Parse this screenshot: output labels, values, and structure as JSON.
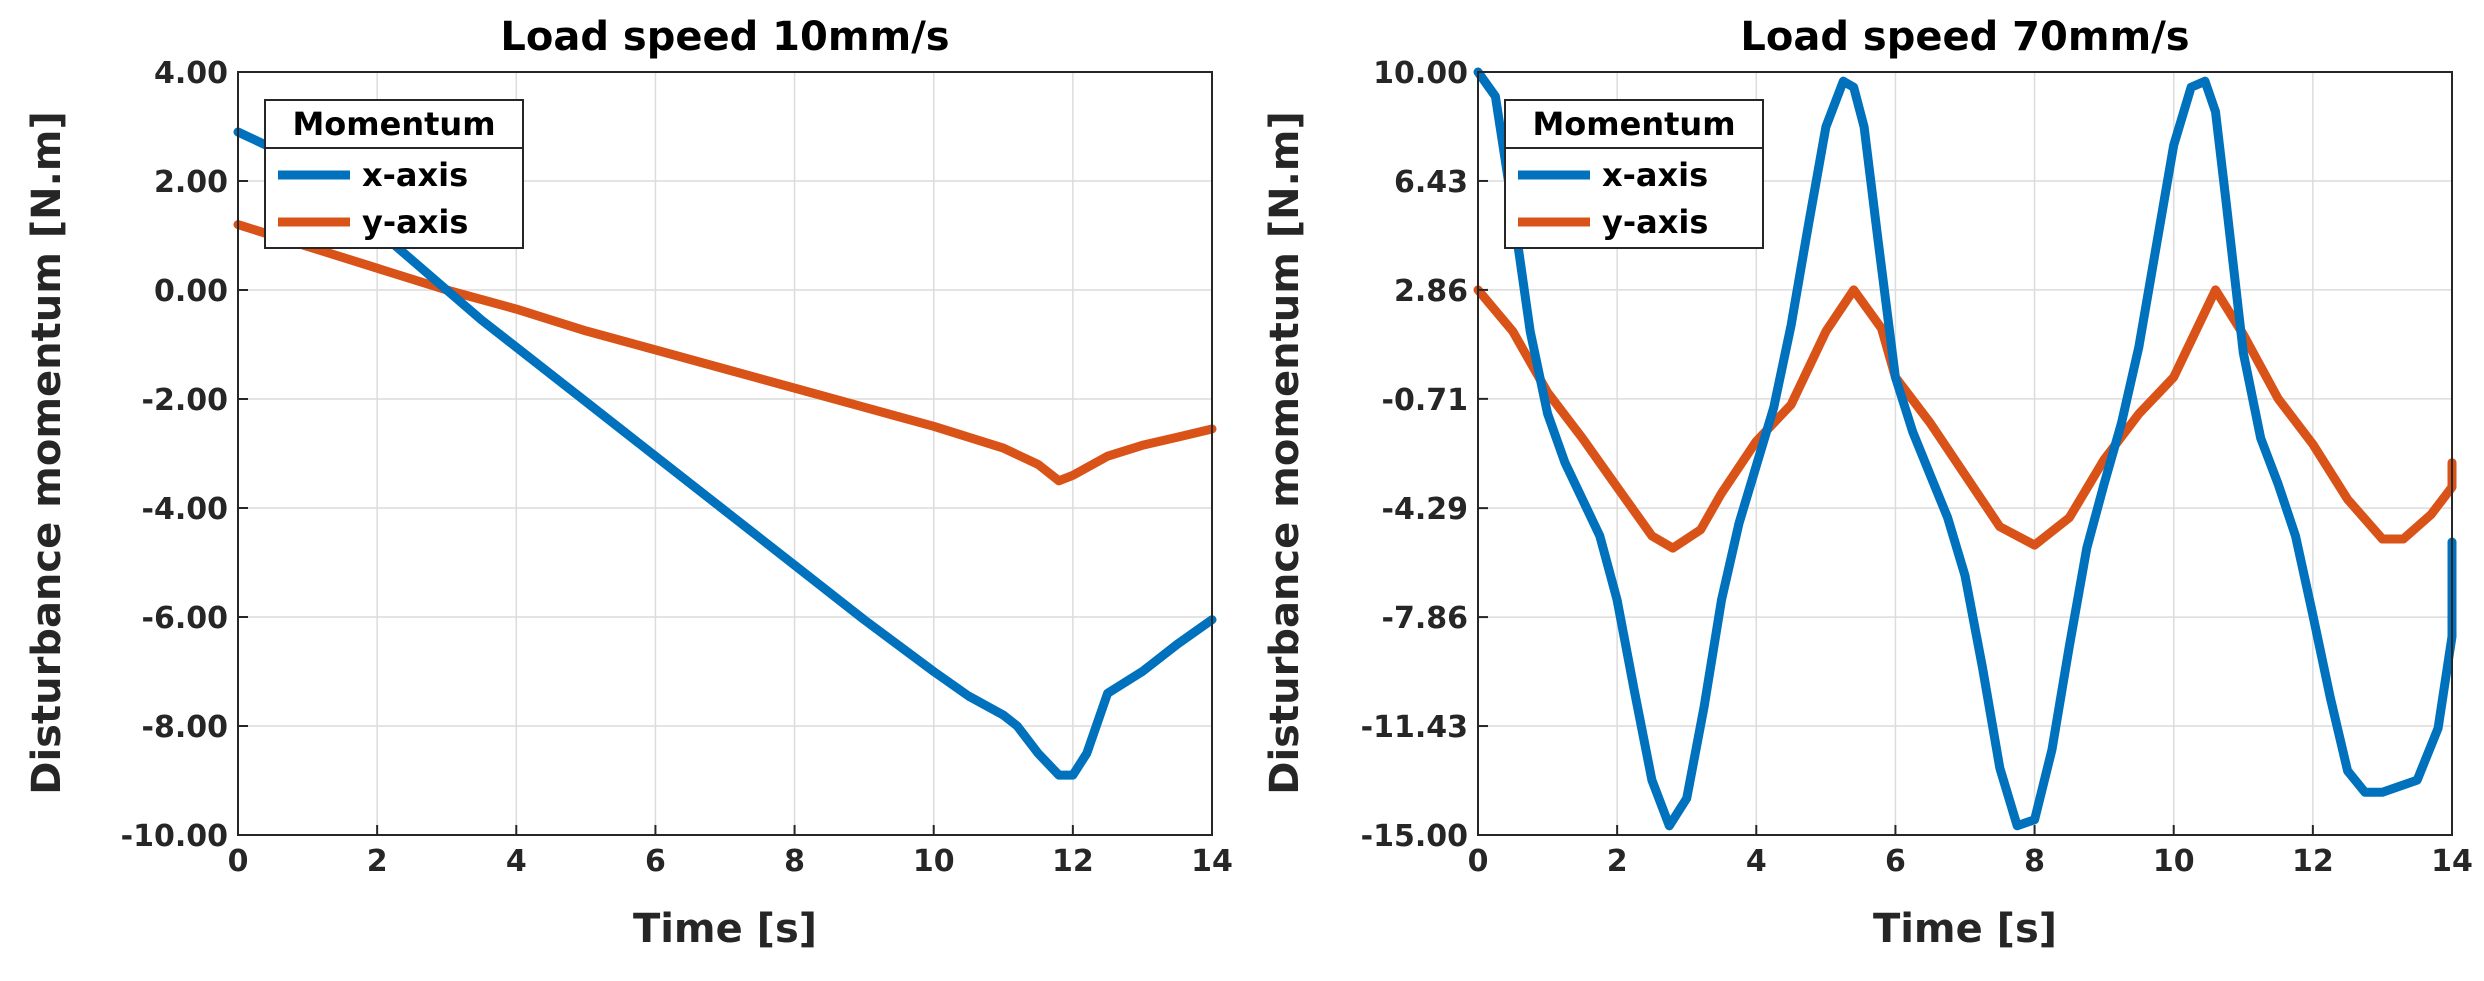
{
  "chart_data": [
    {
      "type": "line",
      "title": "Load speed 10mm/s",
      "xlabel": "Time [s]",
      "ylabel": "Disturbance momentum [N.m]",
      "xlim": [
        0,
        14
      ],
      "ylim": [
        -10,
        4
      ],
      "xticks": [
        0,
        2,
        4,
        6,
        8,
        10,
        12,
        14
      ],
      "xtick_labels": [
        "0",
        "2",
        "4",
        "6",
        "8",
        "10",
        "12",
        "14"
      ],
      "yticks": [
        4,
        2,
        0,
        -2,
        -4,
        -6,
        -8,
        -10
      ],
      "ytick_labels": [
        "4.00",
        "2.00",
        "0.00",
        "-2.00",
        "-4.00",
        "-6.00",
        "-8.00",
        "-10.00"
      ],
      "grid": true,
      "legend": {
        "title": "Momentum",
        "position": "top-left"
      },
      "series": [
        {
          "name": "x-axis",
          "color": "#0072BD",
          "x": [
            0,
            0.5,
            1,
            1.5,
            2,
            2.5,
            3,
            3.5,
            4,
            5,
            6,
            7,
            8,
            9,
            10,
            10.5,
            11,
            11.2,
            11.5,
            11.8,
            12,
            12.2,
            12.5,
            13,
            13.5,
            14
          ],
          "y": [
            2.9,
            2.6,
            2.2,
            1.65,
            1.1,
            0.55,
            0.0,
            -0.55,
            -1.05,
            -2.05,
            -3.05,
            -4.05,
            -5.05,
            -6.05,
            -7.0,
            -7.45,
            -7.8,
            -8.0,
            -8.5,
            -8.9,
            -8.9,
            -8.5,
            -7.4,
            -7.0,
            -6.5,
            -6.05
          ]
        },
        {
          "name": "y-axis",
          "color": "#D95319",
          "x": [
            0,
            1,
            2,
            3,
            4,
            5,
            6,
            7,
            8,
            9,
            10,
            11,
            11.5,
            11.8,
            12,
            12.5,
            13,
            13.5,
            14
          ],
          "y": [
            1.2,
            0.8,
            0.4,
            0.0,
            -0.35,
            -0.75,
            -1.1,
            -1.45,
            -1.8,
            -2.15,
            -2.5,
            -2.9,
            -3.2,
            -3.5,
            -3.4,
            -3.05,
            -2.85,
            -2.7,
            -2.55
          ]
        }
      ]
    },
    {
      "type": "line",
      "title": "Load speed 70mm/s",
      "xlabel": "Time [s]",
      "ylabel": "Disturbance momentum [N.m]",
      "xlim": [
        0,
        14
      ],
      "ylim": [
        -15,
        10
      ],
      "xticks": [
        0,
        2,
        4,
        6,
        8,
        10,
        12,
        14
      ],
      "xtick_labels": [
        "0",
        "2",
        "4",
        "6",
        "8",
        "10",
        "12",
        "14"
      ],
      "yticks": [
        10,
        6.43,
        2.86,
        -0.71,
        -4.29,
        -7.86,
        -11.43,
        -15
      ],
      "ytick_labels": [
        "10.00",
        "6.43",
        "2.86",
        "-0.71",
        "-4.29",
        "-7.86",
        "-11.43",
        "-15.00"
      ],
      "grid": true,
      "legend": {
        "title": "Momentum",
        "position": "top-left"
      },
      "series": [
        {
          "name": "x-axis",
          "color": "#0072BD",
          "x": [
            0,
            0.25,
            0.5,
            0.75,
            1.0,
            1.25,
            1.5,
            1.75,
            2.0,
            2.25,
            2.5,
            2.75,
            3.0,
            3.25,
            3.5,
            3.75,
            4.0,
            4.25,
            4.5,
            4.75,
            5.0,
            5.25,
            5.4,
            5.55,
            5.75,
            6.0,
            6.25,
            6.5,
            6.75,
            7.0,
            7.25,
            7.5,
            7.75,
            8.0,
            8.25,
            8.5,
            8.75,
            9.0,
            9.25,
            9.5,
            9.75,
            10.0,
            10.25,
            10.45,
            10.6,
            10.75,
            11.0,
            11.25,
            11.5,
            11.75,
            12.0,
            12.25,
            12.5,
            12.75,
            13.0,
            13.5,
            13.8,
            14.0,
            14.0
          ],
          "y": [
            10.0,
            9.2,
            5.5,
            1.5,
            -1.2,
            -2.8,
            -4.0,
            -5.2,
            -7.3,
            -10.3,
            -13.2,
            -14.7,
            -13.8,
            -10.8,
            -7.3,
            -4.8,
            -2.9,
            -1.0,
            1.7,
            5.0,
            8.2,
            9.7,
            9.5,
            8.2,
            4.5,
            0.0,
            -1.8,
            -3.2,
            -4.6,
            -6.5,
            -9.5,
            -12.8,
            -14.7,
            -14.5,
            -12.2,
            -8.8,
            -5.6,
            -3.5,
            -1.5,
            1.0,
            4.3,
            7.6,
            9.5,
            9.7,
            8.7,
            5.8,
            0.8,
            -2.0,
            -3.5,
            -5.2,
            -7.8,
            -10.5,
            -12.9,
            -13.6,
            -13.6,
            -13.2,
            -11.5,
            -8.5,
            -5.4
          ]
        },
        {
          "name": "y-axis",
          "color": "#D95319",
          "x": [
            0,
            0.5,
            1.0,
            1.5,
            2.0,
            2.5,
            2.8,
            3.2,
            3.5,
            4.0,
            4.5,
            5.0,
            5.4,
            5.8,
            6.0,
            6.5,
            7.0,
            7.5,
            8.0,
            8.5,
            9.0,
            9.5,
            10.0,
            10.6,
            11.0,
            11.5,
            12.0,
            12.5,
            13.0,
            13.3,
            13.7,
            14.0,
            14.0
          ],
          "y": [
            2.86,
            1.5,
            -0.5,
            -2.0,
            -3.6,
            -5.2,
            -5.6,
            -5.0,
            -3.8,
            -2.1,
            -0.9,
            1.5,
            2.86,
            1.6,
            0.0,
            -1.5,
            -3.2,
            -4.9,
            -5.5,
            -4.6,
            -2.7,
            -1.2,
            0.0,
            2.86,
            1.4,
            -0.7,
            -2.2,
            -4.0,
            -5.3,
            -5.3,
            -4.5,
            -3.6,
            -2.8
          ]
        }
      ]
    }
  ]
}
